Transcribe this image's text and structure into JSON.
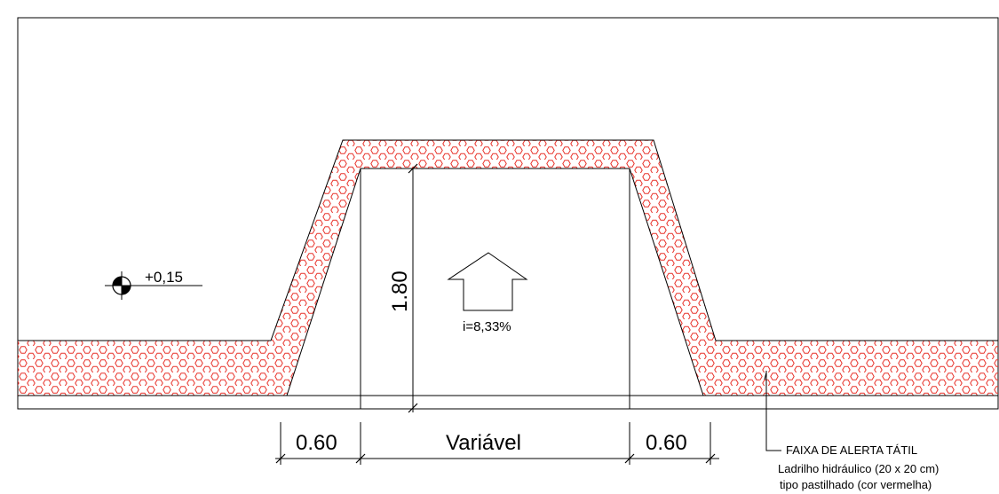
{
  "drawing": {
    "level_mark": "+0,15",
    "slope_label": "i=8,33%",
    "height_dimension": "1.80",
    "dimensions": {
      "left_flare": "0.60",
      "ramp_width": "Variável",
      "right_flare": "0.60"
    },
    "note": {
      "title": "FAIXA DE ALERTA TÁTIL",
      "line1": "Ladrilho hidráulico  (20 x 20 cm)",
      "line2": "tipo pastilhado (cor vermelha)"
    },
    "colors": {
      "line": "#000000",
      "tactile_hatch": "#e8322a",
      "background": "#ffffff"
    },
    "icons": {
      "level_marker": "level-datum-icon",
      "slope_arrow": "up-arrow-icon"
    }
  }
}
